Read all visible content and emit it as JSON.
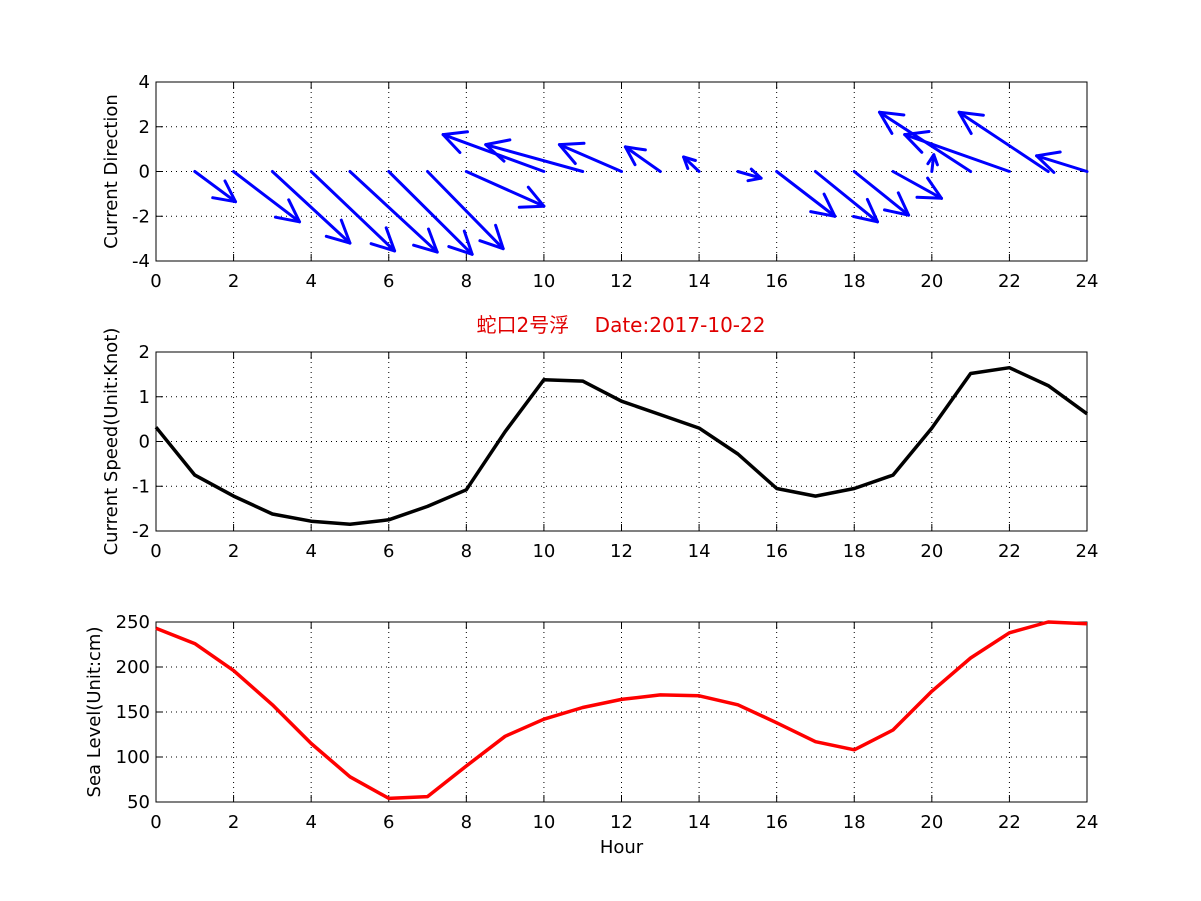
{
  "figure": {
    "title": "蛇口2号浮    Date:2017-10-22"
  },
  "chart_data": [
    {
      "type": "quiver",
      "ylabel": "Current Direction",
      "xlabel": "",
      "xlim": [
        0,
        24
      ],
      "ylim": [
        -4,
        4
      ],
      "xticks": [
        0,
        2,
        4,
        6,
        8,
        10,
        12,
        14,
        16,
        18,
        20,
        22,
        24
      ],
      "yticks": [
        -4,
        -2,
        0,
        2,
        4
      ],
      "grid": true,
      "color": "#0000ff",
      "vectors": [
        {
          "x": 1,
          "y": 0,
          "u": 1.05,
          "v": -1.35
        },
        {
          "x": 2,
          "y": 0,
          "u": 1.7,
          "v": -2.25
        },
        {
          "x": 3,
          "y": 0,
          "u": 2.0,
          "v": -3.2
        },
        {
          "x": 4,
          "y": 0,
          "u": 2.15,
          "v": -3.55
        },
        {
          "x": 5,
          "y": 0,
          "u": 2.25,
          "v": -3.6
        },
        {
          "x": 6,
          "y": 0,
          "u": 2.15,
          "v": -3.7
        },
        {
          "x": 7,
          "y": 0,
          "u": 1.95,
          "v": -3.45
        },
        {
          "x": 8,
          "y": 0,
          "u": 2.0,
          "v": -1.55
        },
        {
          "x": 10,
          "y": 0,
          "u": -2.6,
          "v": 1.65
        },
        {
          "x": 11,
          "y": 0,
          "u": -2.5,
          "v": 1.2
        },
        {
          "x": 12,
          "y": 0,
          "u": -1.6,
          "v": 1.2
        },
        {
          "x": 13,
          "y": 0,
          "u": -0.9,
          "v": 1.1
        },
        {
          "x": 14,
          "y": 0,
          "u": -0.4,
          "v": 0.65
        },
        {
          "x": 15,
          "y": 0,
          "u": 0.6,
          "v": -0.3
        },
        {
          "x": 16,
          "y": 0,
          "u": 1.5,
          "v": -2.0
        },
        {
          "x": 17,
          "y": 0,
          "u": 1.6,
          "v": -2.25
        },
        {
          "x": 18,
          "y": 0,
          "u": 1.4,
          "v": -1.95
        },
        {
          "x": 19,
          "y": 0,
          "u": 1.25,
          "v": -1.2
        },
        {
          "x": 20,
          "y": 0,
          "u": 0.05,
          "v": 0.75
        },
        {
          "x": 21,
          "y": 0,
          "u": -2.35,
          "v": 2.65
        },
        {
          "x": 22,
          "y": 0,
          "u": -2.7,
          "v": 1.65
        },
        {
          "x": 23,
          "y": 0,
          "u": -2.3,
          "v": 2.65
        },
        {
          "x": 24,
          "y": 0,
          "u": -1.3,
          "v": 0.7
        }
      ]
    },
    {
      "type": "line",
      "ylabel": "Current Speed(Unit:Knot)",
      "xlabel": "",
      "xlim": [
        0,
        24
      ],
      "ylim": [
        -2,
        2
      ],
      "xticks": [
        0,
        2,
        4,
        6,
        8,
        10,
        12,
        14,
        16,
        18,
        20,
        22,
        24
      ],
      "yticks": [
        -2,
        -1,
        0,
        1,
        2
      ],
      "grid": true,
      "color": "#000000",
      "x": [
        0,
        1,
        2,
        3,
        4,
        5,
        6,
        7,
        8,
        9,
        10,
        11,
        12,
        13,
        14,
        15,
        16,
        17,
        18,
        19,
        20,
        21,
        22,
        23,
        24
      ],
      "y": [
        0.32,
        -0.75,
        -1.22,
        -1.62,
        -1.78,
        -1.85,
        -1.75,
        -1.45,
        -1.08,
        0.22,
        1.38,
        1.35,
        0.9,
        0.6,
        0.3,
        -0.28,
        -1.05,
        -1.22,
        -1.05,
        -0.75,
        0.3,
        1.52,
        1.65,
        1.25,
        0.62
      ]
    },
    {
      "type": "line",
      "ylabel": "Sea Level(Unit:cm)",
      "xlabel": "Hour",
      "xlim": [
        0,
        24
      ],
      "ylim": [
        50,
        250
      ],
      "xticks": [
        0,
        2,
        4,
        6,
        8,
        10,
        12,
        14,
        16,
        18,
        20,
        22,
        24
      ],
      "yticks": [
        50,
        100,
        150,
        200,
        250
      ],
      "grid": true,
      "color": "#ff0000",
      "x": [
        0,
        1,
        2,
        3,
        4,
        5,
        6,
        7,
        8,
        9,
        10,
        11,
        12,
        13,
        14,
        15,
        16,
        17,
        18,
        19,
        20,
        21,
        22,
        23,
        24
      ],
      "y": [
        243,
        226,
        196,
        158,
        115,
        78,
        54,
        56,
        90,
        123,
        142,
        155,
        164,
        169,
        168,
        158,
        138,
        117,
        108,
        130,
        173,
        210,
        238,
        250,
        248
      ]
    }
  ]
}
